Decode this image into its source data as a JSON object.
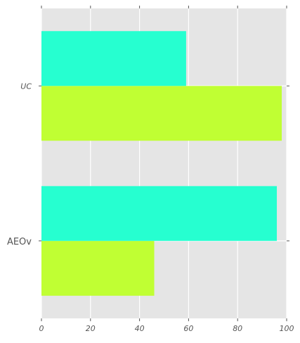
{
  "chart_data": {
    "type": "bar",
    "orientation": "horizontal",
    "categories": [
      "AEOv",
      "UC"
    ],
    "series": [
      {
        "values": [
          46,
          98
        ],
        "color": "#c0ff33"
      },
      {
        "values": [
          96,
          59
        ],
        "color": "#26ffd0"
      }
    ],
    "xlim": [
      0,
      100
    ],
    "xticks": [
      0,
      20,
      40,
      60,
      80,
      100
    ],
    "title": "",
    "xlabel": "",
    "ylabel": "",
    "grid": true,
    "style": {
      "background": "#e5e5e5",
      "grid_color": "#ffffff"
    }
  }
}
